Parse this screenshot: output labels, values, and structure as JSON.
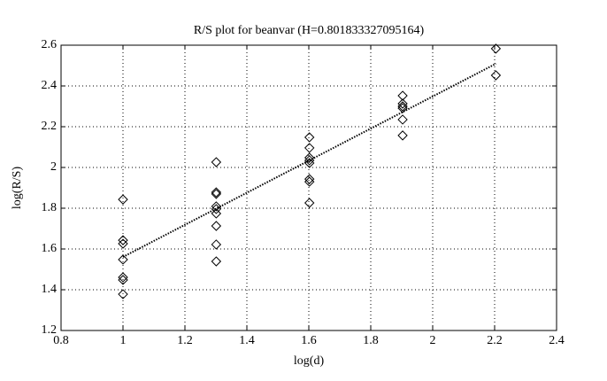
{
  "chart_data": {
    "type": "scatter",
    "title": "R/S plot for beanvar (H=0.801833327095164)",
    "x_label": "log(d)",
    "y_label": "log(R/S)",
    "xlim": [
      0.8,
      2.4
    ],
    "xticks": [
      0.8,
      1,
      1.2,
      1.4,
      1.6,
      1.8,
      2,
      2.2,
      2.4
    ],
    "ylim": [
      1.2,
      2.6
    ],
    "yticks": [
      1.2,
      1.4,
      1.6,
      1.8,
      2,
      2.2,
      2.4,
      2.6
    ],
    "grid": true,
    "marker": "diamond",
    "color": "#000000",
    "x": [
      1,
      1,
      1,
      1,
      1,
      1,
      1,
      1.301,
      1.301,
      1.301,
      1.301,
      1.301,
      1.301,
      1.301,
      1.301,
      1.301,
      1.602,
      1.602,
      1.602,
      1.602,
      1.602,
      1.602,
      1.602,
      1.602,
      1.903,
      1.903,
      1.903,
      1.903,
      1.903,
      1.903,
      2.204,
      2.204
    ],
    "values": [
      1.843,
      1.643,
      1.626,
      1.548,
      1.461,
      1.448,
      1.378,
      2.026,
      1.878,
      1.87,
      1.809,
      1.796,
      1.774,
      1.713,
      1.622,
      1.539,
      2.148,
      2.096,
      2.048,
      2.035,
      2.022,
      1.943,
      1.93,
      1.826,
      2.352,
      2.313,
      2.3,
      2.291,
      2.235,
      2.157,
      2.583,
      2.452
    ],
    "fit": {
      "x": [
        1,
        2.204
      ],
      "values": [
        1.561,
        2.509
      ]
    }
  }
}
